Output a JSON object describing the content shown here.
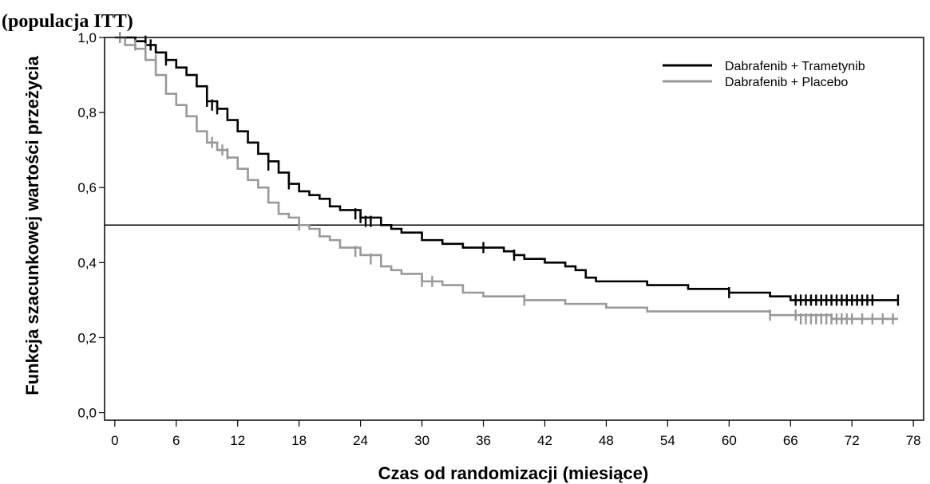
{
  "title_line2": "(populacja ITT)",
  "chart_data": {
    "type": "line",
    "xlabel": "Czas od randomizacji (miesiące)",
    "ylabel": "Funkcja szacunkowej wartości przeżycia",
    "xlim": [
      -1,
      79
    ],
    "ylim": [
      -0.02,
      1.0
    ],
    "xticks": [
      0,
      6,
      12,
      18,
      24,
      30,
      36,
      42,
      48,
      54,
      60,
      66,
      72,
      78
    ],
    "yticks": [
      0.0,
      0.2,
      0.4,
      0.6,
      0.8,
      1.0
    ],
    "ytick_labels": [
      "0,0",
      "0,2",
      "0,4",
      "0,6",
      "0,8",
      "1,0"
    ],
    "reference_line_y": 0.5,
    "legend_position": "top-right",
    "series": [
      {
        "name": "Dabrafenib + Trametynib",
        "color": "#000000",
        "x": [
          0,
          1,
          2,
          3,
          4,
          5,
          6,
          7,
          8,
          9,
          10,
          11,
          12,
          13,
          14,
          15,
          16,
          17,
          18,
          19,
          20,
          21,
          22,
          24,
          26,
          27,
          28,
          30,
          32,
          34,
          36,
          38,
          39,
          40,
          42,
          44,
          45,
          46,
          47,
          48,
          52,
          54,
          56,
          58,
          60,
          62,
          64,
          66,
          70,
          74,
          76.5
        ],
        "y": [
          1.0,
          1.0,
          0.99,
          0.98,
          0.96,
          0.94,
          0.92,
          0.9,
          0.87,
          0.83,
          0.81,
          0.78,
          0.75,
          0.72,
          0.69,
          0.67,
          0.64,
          0.61,
          0.59,
          0.58,
          0.57,
          0.55,
          0.54,
          0.52,
          0.5,
          0.49,
          0.48,
          0.46,
          0.45,
          0.44,
          0.44,
          0.43,
          0.42,
          0.41,
          0.4,
          0.39,
          0.38,
          0.36,
          0.35,
          0.35,
          0.34,
          0.34,
          0.33,
          0.33,
          0.32,
          0.32,
          0.31,
          0.3,
          0.3,
          0.3,
          0.3
        ],
        "censor_x": [
          0.5,
          3,
          3.5,
          5,
          9,
          9.5,
          10,
          15,
          17,
          23.5,
          24,
          24.5,
          25,
          36,
          39,
          60,
          66.5,
          67,
          67.5,
          68,
          68.5,
          69,
          69.5,
          70,
          70.5,
          71,
          71.5,
          72,
          72.5,
          73,
          73.5,
          74,
          76.5
        ],
        "censor_y": [
          1.0,
          0.99,
          0.98,
          0.94,
          0.83,
          0.82,
          0.81,
          0.66,
          0.61,
          0.53,
          0.52,
          0.51,
          0.51,
          0.44,
          0.42,
          0.32,
          0.3,
          0.3,
          0.3,
          0.3,
          0.3,
          0.3,
          0.3,
          0.3,
          0.3,
          0.3,
          0.3,
          0.3,
          0.3,
          0.3,
          0.3,
          0.3,
          0.3
        ]
      },
      {
        "name": "Dabrafenib + Placebo",
        "color": "#999999",
        "x": [
          0,
          1,
          2,
          3,
          4,
          5,
          6,
          7,
          8,
          9,
          10,
          11,
          12,
          13,
          14,
          15,
          16,
          17,
          18,
          19,
          20,
          21,
          22,
          24,
          26,
          27,
          28,
          30,
          32,
          34,
          36,
          38,
          40,
          42,
          44,
          46,
          48,
          52,
          54,
          56,
          58,
          60,
          62,
          64,
          66,
          70,
          74,
          76.5
        ],
        "y": [
          1.0,
          0.98,
          0.97,
          0.94,
          0.9,
          0.85,
          0.82,
          0.79,
          0.75,
          0.72,
          0.7,
          0.68,
          0.65,
          0.62,
          0.6,
          0.56,
          0.53,
          0.52,
          0.5,
          0.49,
          0.47,
          0.46,
          0.44,
          0.42,
          0.39,
          0.38,
          0.37,
          0.35,
          0.34,
          0.32,
          0.31,
          0.31,
          0.3,
          0.3,
          0.29,
          0.29,
          0.28,
          0.27,
          0.27,
          0.27,
          0.27,
          0.27,
          0.27,
          0.26,
          0.26,
          0.25,
          0.25,
          0.25
        ],
        "censor_x": [
          0.5,
          2,
          3,
          4,
          9.5,
          10.5,
          11,
          18,
          23.5,
          25,
          30,
          31,
          40,
          64,
          66.5,
          67,
          67.5,
          68,
          68.5,
          69,
          69.5,
          70,
          70.5,
          71,
          71.5,
          72,
          73,
          74,
          75,
          76
        ],
        "censor_y": [
          1.0,
          0.98,
          0.97,
          0.94,
          0.72,
          0.7,
          0.69,
          0.5,
          0.43,
          0.41,
          0.35,
          0.35,
          0.3,
          0.26,
          0.26,
          0.25,
          0.25,
          0.25,
          0.25,
          0.25,
          0.25,
          0.25,
          0.25,
          0.25,
          0.25,
          0.25,
          0.25,
          0.25,
          0.25,
          0.25
        ]
      }
    ]
  }
}
